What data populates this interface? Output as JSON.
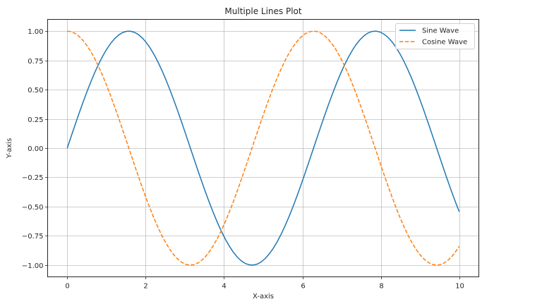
{
  "chart_data": {
    "type": "line",
    "title": "Multiple Lines Plot",
    "xlabel": "X-axis",
    "ylabel": "Y-axis",
    "xlim": [
      -0.5,
      10.5
    ],
    "ylim": [
      -1.1,
      1.1
    ],
    "grid": true,
    "legend_position": "upper right",
    "x_ticks": [
      0,
      2,
      4,
      6,
      8,
      10
    ],
    "x_tick_labels": [
      "0",
      "2",
      "4",
      "6",
      "8",
      "10"
    ],
    "y_ticks": [
      -1.0,
      -0.75,
      -0.5,
      -0.25,
      0.0,
      0.25,
      0.5,
      0.75,
      1.0
    ],
    "y_tick_labels": [
      "−1.00",
      "−0.75",
      "−0.50",
      "−0.25",
      "0.00",
      "0.25",
      "0.50",
      "0.75",
      "1.00"
    ],
    "x_range": [
      0,
      10
    ],
    "num_points": 100,
    "series": [
      {
        "name": "Sine Wave",
        "function": "sin(x)",
        "color": "#1f77b4",
        "linestyle": "solid",
        "x": [
          0,
          1,
          2,
          3,
          4,
          5,
          6,
          7,
          8,
          9,
          10
        ],
        "values": [
          0.0,
          0.84,
          0.91,
          0.14,
          -0.76,
          -0.96,
          -0.28,
          0.66,
          0.99,
          0.41,
          -0.54
        ]
      },
      {
        "name": "Cosine Wave",
        "function": "cos(x)",
        "color": "#ff7f0e",
        "linestyle": "dashed",
        "x": [
          0,
          1,
          2,
          3,
          4,
          5,
          6,
          7,
          8,
          9,
          10
        ],
        "values": [
          1.0,
          0.54,
          -0.42,
          -0.99,
          -0.65,
          0.28,
          0.96,
          0.75,
          -0.15,
          -0.91,
          -0.84
        ]
      }
    ]
  },
  "legend": {
    "items": [
      {
        "label": "Sine Wave",
        "color": "#1f77b4"
      },
      {
        "label": "Cosine Wave",
        "color": "#ff7f0e"
      }
    ]
  }
}
